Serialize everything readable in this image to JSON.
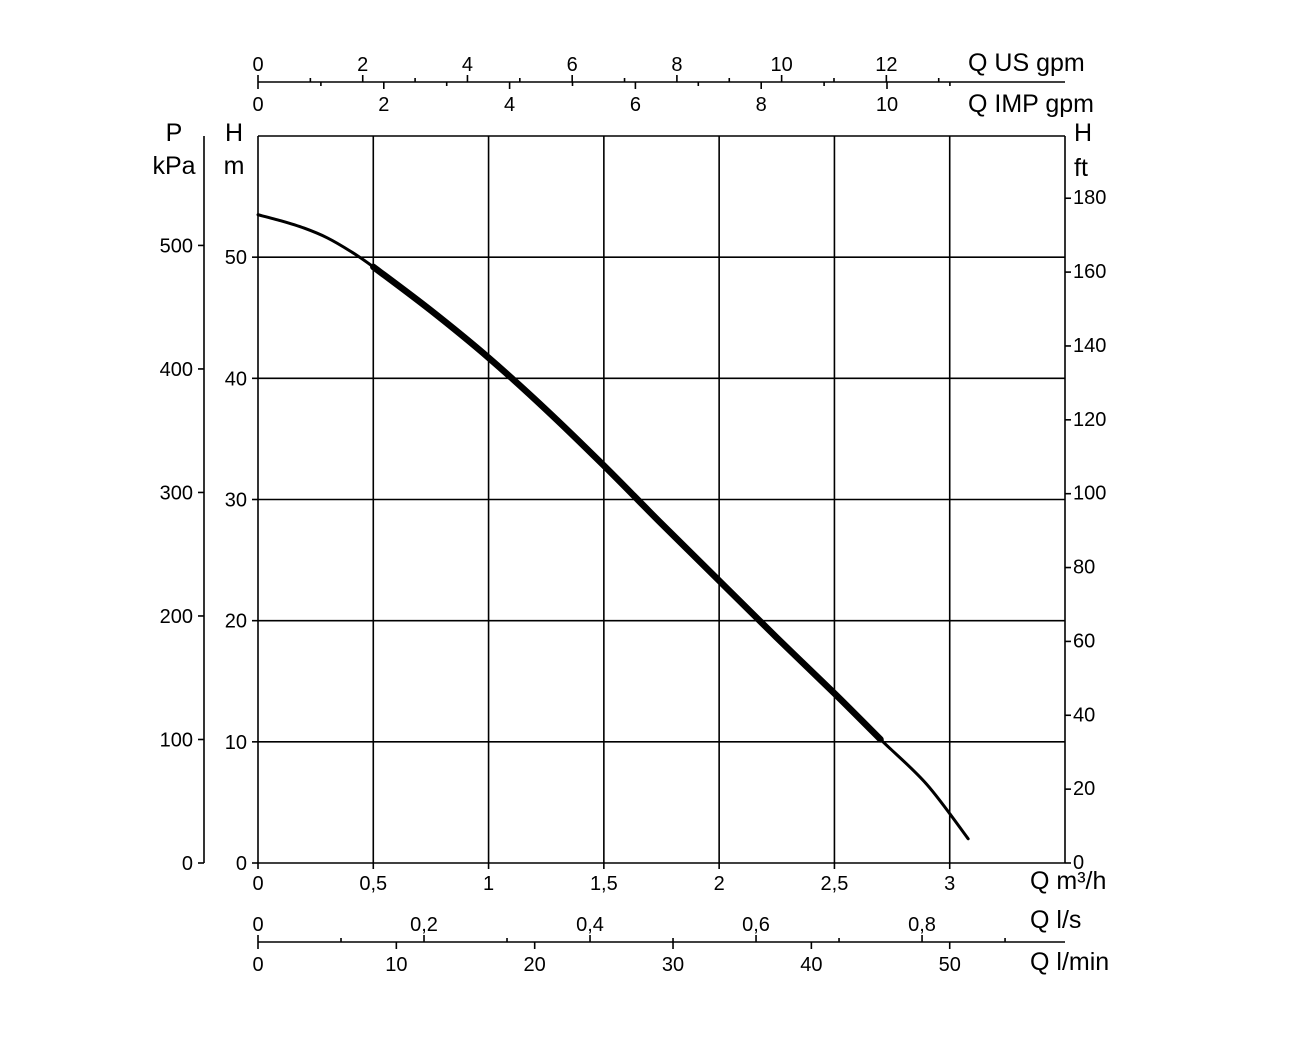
{
  "chart_data": {
    "type": "line",
    "title": "",
    "grid": true,
    "x_primary": {
      "label": "Q m³/h",
      "range": [
        0,
        3.5
      ],
      "tick_labels": [
        "0",
        "0,5",
        "1",
        "1,5",
        "2",
        "2,5",
        "3"
      ],
      "tick_values": [
        0,
        0.5,
        1,
        1.5,
        2,
        2.5,
        3
      ]
    },
    "x_us_gpm": {
      "label": "Q US gpm",
      "tick_labels": [
        "0",
        "2",
        "4",
        "6",
        "8",
        "10",
        "12"
      ],
      "tick_values": [
        0,
        2,
        4,
        6,
        8,
        10,
        12
      ],
      "minor_tick_values": [
        1,
        3,
        5,
        7,
        9,
        11,
        13
      ]
    },
    "x_imp_gpm": {
      "label": "Q IMP gpm",
      "tick_labels": [
        "0",
        "2",
        "4",
        "6",
        "8",
        "10"
      ],
      "tick_values": [
        0,
        2,
        4,
        6,
        8,
        10
      ],
      "minor_tick_values": [
        1,
        3,
        5,
        7,
        9,
        11
      ]
    },
    "x_ls": {
      "label": "Q l/s",
      "tick_labels": [
        "0",
        "0,2",
        "0,4",
        "0,6",
        "0,8"
      ],
      "tick_values": [
        0,
        0.2,
        0.4,
        0.6,
        0.8
      ],
      "minor_tick_values": [
        0.1,
        0.3,
        0.5,
        0.7,
        0.9
      ]
    },
    "x_lmin": {
      "label": "Q l/min",
      "tick_labels": [
        "0",
        "10",
        "20",
        "30",
        "40",
        "50"
      ],
      "tick_values": [
        0,
        10,
        20,
        30,
        40,
        50
      ]
    },
    "y_primary": {
      "label_top": "H",
      "label_unit": "m",
      "range": [
        0,
        60
      ],
      "tick_labels": [
        "0",
        "10",
        "20",
        "30",
        "40",
        "50"
      ],
      "tick_values": [
        0,
        10,
        20,
        30,
        40,
        50
      ]
    },
    "y_pressure": {
      "label_top": "P",
      "label_unit": "kPa",
      "tick_labels": [
        "0",
        "100",
        "200",
        "300",
        "400",
        "500"
      ],
      "tick_values": [
        0,
        100,
        200,
        300,
        400,
        500
      ]
    },
    "y_ft": {
      "label_top": "H",
      "label_unit": "ft",
      "tick_labels": [
        "0",
        "20",
        "40",
        "60",
        "80",
        "100",
        "120",
        "140",
        "160",
        "180"
      ],
      "tick_values": [
        0,
        20,
        40,
        60,
        80,
        100,
        120,
        140,
        160,
        180
      ]
    },
    "series": [
      {
        "x": [
          0,
          0.1,
          0.2,
          0.3,
          0.4,
          0.5,
          0.75,
          1.0,
          1.25,
          1.5,
          1.75,
          2.0,
          2.25,
          2.5,
          2.7,
          2.9,
          3.08
        ],
        "y": [
          53.5,
          53.0,
          52.4,
          51.6,
          50.5,
          49.2,
          45.6,
          41.7,
          37.4,
          32.8,
          28.0,
          23.3,
          18.6,
          14.0,
          10.2,
          6.5,
          2.0
        ],
        "bold_range": [
          0.5,
          2.7
        ]
      }
    ]
  }
}
